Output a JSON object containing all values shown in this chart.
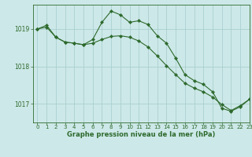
{
  "background_color": "#cde8e8",
  "grid_color": "#aacfcf",
  "line_color": "#2d6a2d",
  "marker_color": "#2d6a2d",
  "xlabel": "Graphe pression niveau de la mer (hPa)",
  "ylim": [
    1016.5,
    1019.65
  ],
  "xlim": [
    -0.5,
    23
  ],
  "yticks": [
    1017,
    1018,
    1019
  ],
  "xticks": [
    0,
    1,
    2,
    3,
    4,
    5,
    6,
    7,
    8,
    9,
    10,
    11,
    12,
    13,
    14,
    15,
    16,
    17,
    18,
    19,
    20,
    21,
    22,
    23
  ],
  "series1_x": [
    0,
    1,
    2,
    3,
    4,
    5,
    6,
    7,
    8,
    9,
    10,
    11,
    12,
    13,
    14,
    15,
    16,
    17,
    18,
    19,
    20,
    21,
    22,
    23
  ],
  "series1_y": [
    1019.0,
    1019.1,
    1018.78,
    1018.65,
    1018.62,
    1018.58,
    1018.72,
    1019.18,
    1019.48,
    1019.38,
    1019.18,
    1019.22,
    1019.12,
    1018.82,
    1018.62,
    1018.22,
    1017.78,
    1017.62,
    1017.52,
    1017.32,
    1016.88,
    1016.8,
    1016.92,
    1017.12
  ],
  "series2_x": [
    0,
    1,
    2,
    3,
    4,
    5,
    6,
    7,
    8,
    9,
    10,
    11,
    12,
    13,
    14,
    15,
    16,
    17,
    18,
    19,
    20,
    21,
    22,
    23
  ],
  "series2_y": [
    1019.0,
    1019.05,
    1018.78,
    1018.65,
    1018.62,
    1018.58,
    1018.62,
    1018.72,
    1018.8,
    1018.82,
    1018.78,
    1018.68,
    1018.52,
    1018.28,
    1018.02,
    1017.78,
    1017.55,
    1017.42,
    1017.32,
    1017.18,
    1016.98,
    1016.82,
    1016.95,
    1017.12
  ]
}
